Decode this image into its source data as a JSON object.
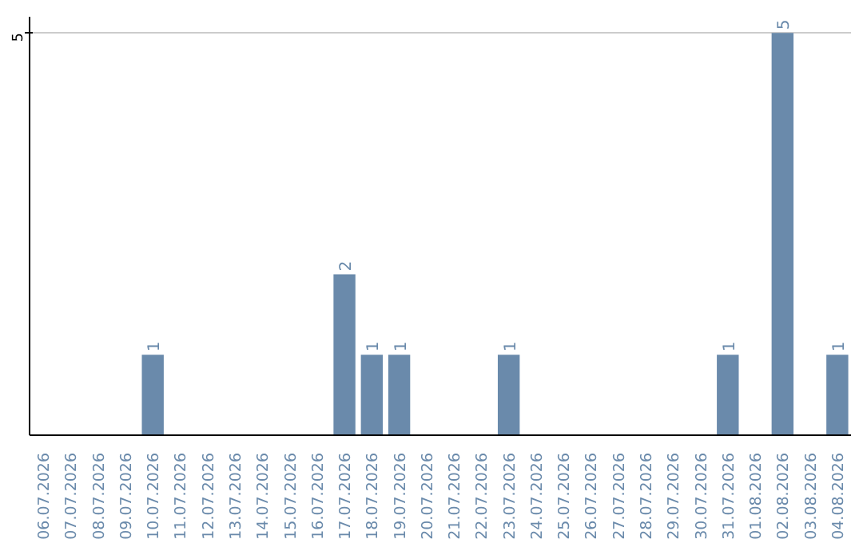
{
  "chart_data": {
    "type": "bar",
    "categories": [
      "06.07.2026",
      "07.07.2026",
      "08.07.2026",
      "09.07.2026",
      "10.07.2026",
      "11.07.2026",
      "12.07.2026",
      "13.07.2026",
      "14.07.2026",
      "15.07.2026",
      "16.07.2026",
      "17.07.2026",
      "18.07.2026",
      "19.07.2026",
      "20.07.2026",
      "21.07.2026",
      "22.07.2026",
      "23.07.2026",
      "24.07.2026",
      "25.07.2026",
      "26.07.2026",
      "27.07.2026",
      "28.07.2026",
      "29.07.2026",
      "30.07.2026",
      "31.07.2026",
      "01.08.2026",
      "02.08.2026",
      "03.08.2026",
      "04.08.2026"
    ],
    "values": [
      0,
      0,
      0,
      0,
      1,
      0,
      0,
      0,
      0,
      0,
      0,
      2,
      1,
      1,
      0,
      0,
      0,
      1,
      0,
      0,
      0,
      0,
      0,
      0,
      0,
      1,
      0,
      5,
      0,
      1
    ],
    "value_labels": [
      null,
      null,
      null,
      null,
      "1",
      null,
      null,
      null,
      null,
      null,
      null,
      "2",
      "1",
      "1",
      null,
      null,
      null,
      "1",
      null,
      null,
      null,
      null,
      null,
      null,
      null,
      "1",
      null,
      "5",
      null,
      "1"
    ],
    "color": "#6a8aab",
    "ylim": [
      0,
      5.2
    ],
    "yticks": [
      5
    ],
    "grid": "y"
  }
}
